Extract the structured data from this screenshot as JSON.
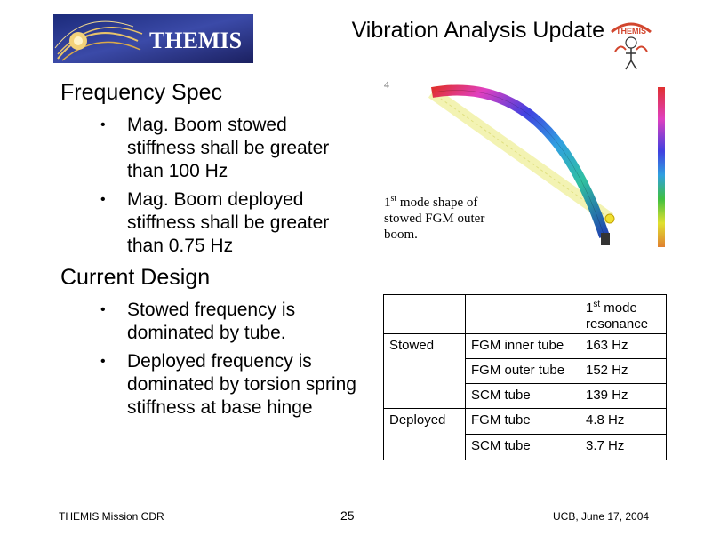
{
  "header": {
    "logo_text": "THEMIS",
    "title": "Vibration Analysis Update",
    "badge_text": "THEMIS"
  },
  "frequency_spec": {
    "heading": "Frequency Spec",
    "bullets": [
      "Mag. Boom stowed stiffness shall be greater than 100 Hz",
      "Mag. Boom deployed stiffness shall be greater than 0.75 Hz"
    ]
  },
  "current_design": {
    "heading": "Current Design",
    "bullets": [
      "Stowed frequency is dominated by tube.",
      "Deployed frequency is dominated by torsion spring stiffness at base hinge"
    ]
  },
  "figure": {
    "number": "4",
    "caption_sup": "st",
    "caption_pre": "1",
    "caption_post": " mode shape of stowed FGM outer boom."
  },
  "table": {
    "header_pre": "1",
    "header_sup": "st",
    "header_post": " mode resonance",
    "stowed_label": "Stowed",
    "deployed_label": "Deployed",
    "rows": [
      {
        "item": "FGM inner tube",
        "freq": "163 Hz"
      },
      {
        "item": "FGM outer tube",
        "freq": "152 Hz"
      },
      {
        "item": "SCM tube",
        "freq": "139 Hz"
      },
      {
        "item": "FGM tube",
        "freq": "4.8 Hz"
      },
      {
        "item": "SCM tube",
        "freq": "3.7 Hz"
      }
    ]
  },
  "footer": {
    "left": "THEMIS Mission CDR",
    "page": "25",
    "right": "UCB, June 17, 2004"
  },
  "colors": {
    "logo_bg": "#2a3a8a",
    "logo_gold": "#e8c36a",
    "badge": "#d2462e"
  }
}
